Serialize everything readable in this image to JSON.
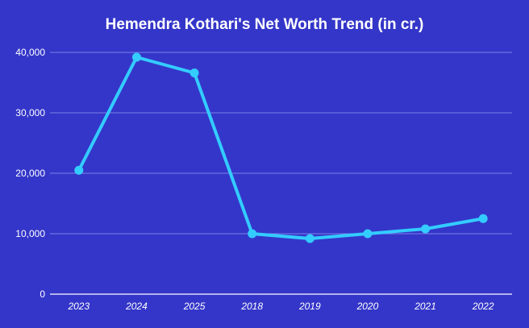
{
  "chart_data": {
    "type": "line",
    "title": "Hemendra Kothari's Net Worth Trend (in cr.)",
    "xlabel": "",
    "ylabel": "",
    "categories": [
      "2023",
      "2024",
      "2025",
      "2018",
      "2019",
      "2020",
      "2021",
      "2022"
    ],
    "values": [
      20500,
      39200,
      36600,
      10000,
      9200,
      10000,
      10800,
      12500
    ],
    "ylim": [
      0,
      40000
    ],
    "yticks": [
      "0",
      "10,000",
      "20,000",
      "30,000",
      "40,000"
    ],
    "ytick_values": [
      0,
      10000,
      20000,
      30000,
      40000
    ],
    "grid": true,
    "colors": {
      "background": "#3436c9",
      "line": "#33ccff",
      "grid": "#7d80e6",
      "text": "#ffffff"
    }
  }
}
